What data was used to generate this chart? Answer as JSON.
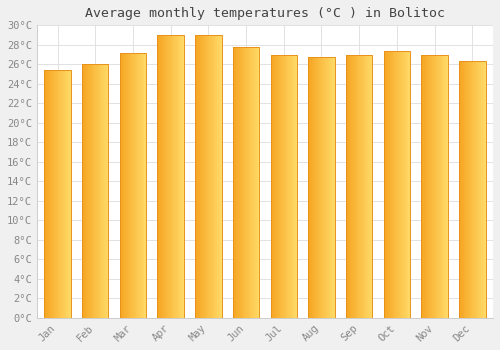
{
  "title": "Average monthly temperatures (°C ) in Bolitoc",
  "months": [
    "Jan",
    "Feb",
    "Mar",
    "Apr",
    "May",
    "Jun",
    "Jul",
    "Aug",
    "Sep",
    "Oct",
    "Nov",
    "Dec"
  ],
  "values": [
    25.4,
    26.0,
    27.2,
    29.0,
    29.0,
    27.8,
    27.0,
    26.7,
    27.0,
    27.4,
    27.0,
    26.3
  ],
  "bar_color_left": "#F5A623",
  "bar_color_right": "#FFD966",
  "bar_edge_color": "#E8921A",
  "ylim": [
    0,
    30
  ],
  "ytick_step": 2,
  "plot_bg_color": "#ffffff",
  "fig_bg_color": "#f0f0f0",
  "grid_color": "#dddddd",
  "title_fontsize": 9.5,
  "tick_fontsize": 7.5,
  "tick_color": "#888888",
  "font_family": "monospace"
}
